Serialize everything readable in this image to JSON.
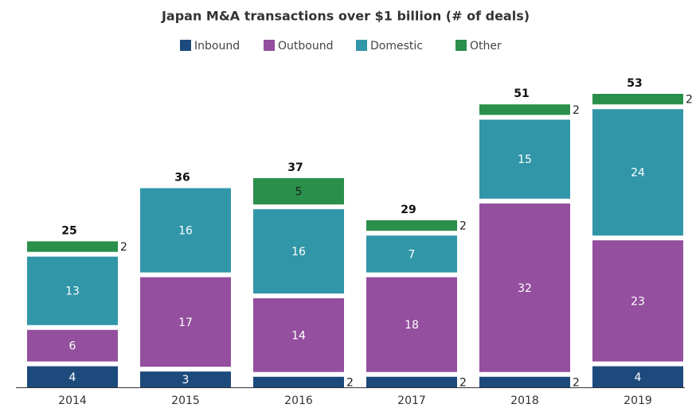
{
  "chart_data": {
    "type": "stacked_bar",
    "title": "Japan M&A transactions over $1 billion (# of deals)",
    "categories": [
      "2014",
      "2015",
      "2016",
      "2017",
      "2018",
      "2019"
    ],
    "series": [
      {
        "name": "Inbound",
        "color": "#1d4a7c",
        "values": [
          4,
          3,
          2,
          2,
          2,
          4
        ]
      },
      {
        "name": "Outbound",
        "color": "#944f9e",
        "values": [
          6,
          17,
          14,
          18,
          32,
          23
        ]
      },
      {
        "name": "Domestic",
        "color": "#3196a8",
        "values": [
          13,
          16,
          16,
          7,
          15,
          24
        ]
      },
      {
        "name": "Other",
        "color": "#2a8f4a",
        "values": [
          2,
          null,
          5,
          2,
          2,
          2
        ]
      }
    ],
    "totals": [
      25,
      36,
      37,
      29,
      51,
      53
    ]
  }
}
